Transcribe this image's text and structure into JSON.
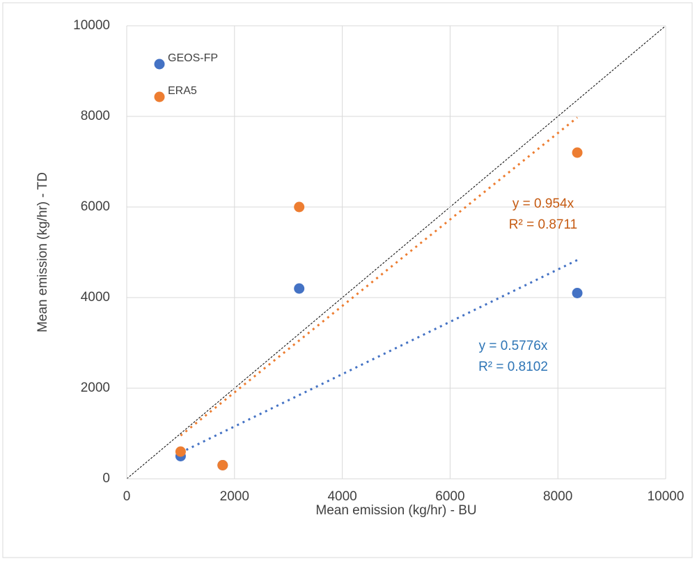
{
  "chart_data": {
    "type": "scatter",
    "xlabel": "Mean emission (kg/hr) - BU",
    "ylabel": "Mean emission (kg/hr) - TD",
    "xlim": [
      0,
      10000
    ],
    "xticks": [
      0,
      2000,
      4000,
      6000,
      8000,
      10000
    ],
    "ylim": [
      0,
      10000
    ],
    "yticks": [
      0,
      2000,
      4000,
      6000,
      8000,
      10000
    ],
    "grid": true,
    "legend": "top-left",
    "series": [
      {
        "name": "GEOS-FP",
        "color": "#4472c4",
        "x": [
          1000,
          1780,
          3200,
          8360
        ],
        "values": [
          500,
          300,
          4200,
          4100
        ],
        "trendline": {
          "slope": 0.5776,
          "equation": "y = 0.5776x",
          "r_squared": 0.8102,
          "r_squared_label": "R² = 0.8102",
          "color": "#2e75b6"
        }
      },
      {
        "name": "ERA5",
        "color": "#ed7d31",
        "x": [
          1000,
          1780,
          3200,
          8360
        ],
        "values": [
          600,
          300,
          6000,
          7200
        ],
        "trendline": {
          "slope": 0.954,
          "equation": "y = 0.954x",
          "r_squared": 0.8711,
          "r_squared_label": "R² = 0.8711",
          "color": "#c55a11"
        }
      }
    ]
  }
}
